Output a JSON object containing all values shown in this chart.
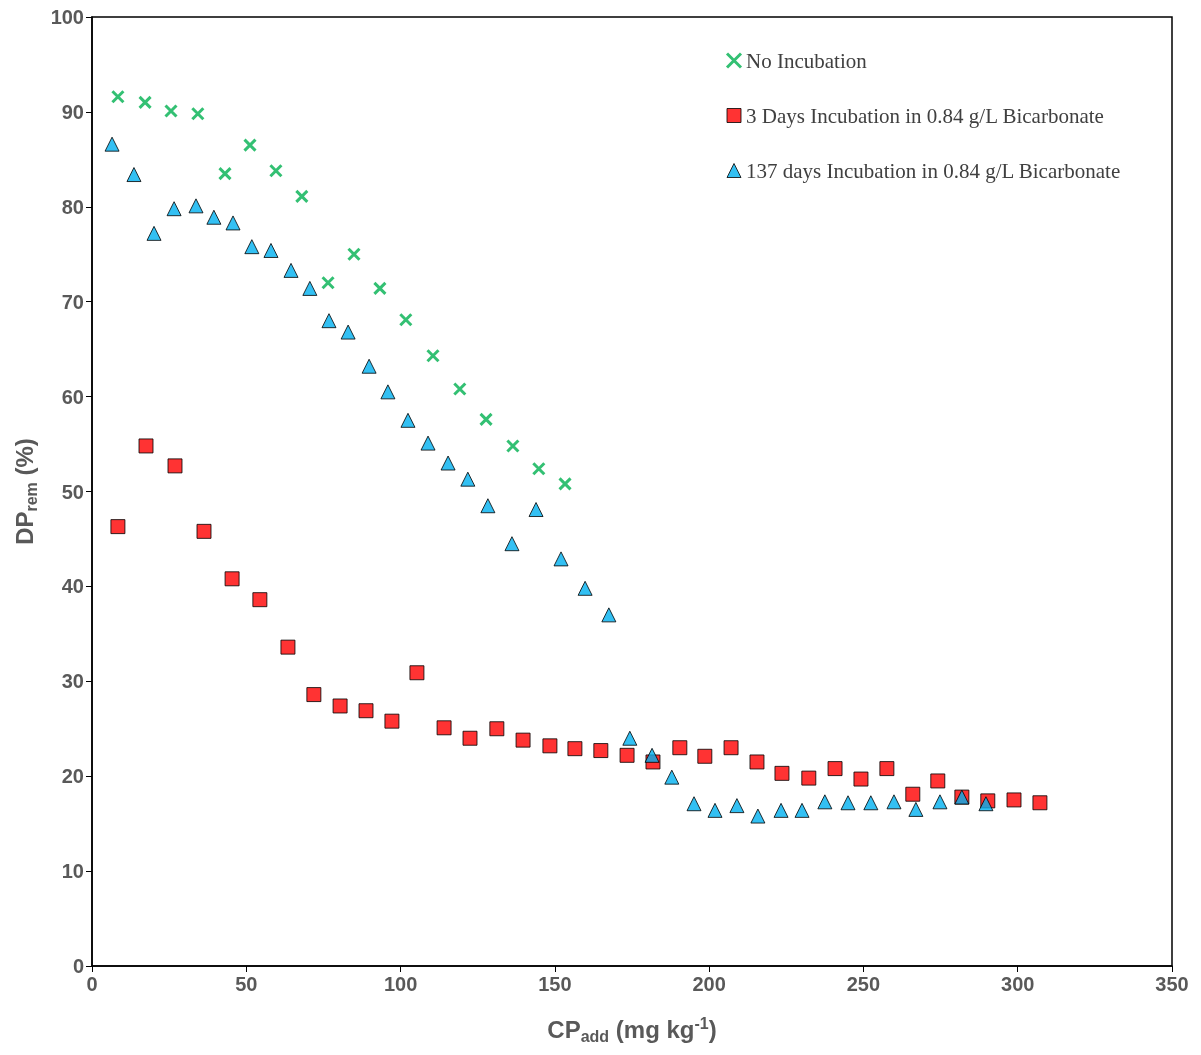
{
  "chart_data": {
    "type": "scatter",
    "xlabel": "CP$_{add}$ (mg kg$^{-1}$)",
    "ylabel": "DP$_{rem}$ (%)",
    "xlim": [
      0,
      350
    ],
    "xticks": [
      0,
      50,
      100,
      150,
      200,
      250,
      300,
      350
    ],
    "ylim": [
      0,
      100
    ],
    "yticks": [
      0,
      10,
      20,
      30,
      40,
      50,
      60,
      70,
      80,
      90,
      100
    ],
    "grid": false,
    "legend": "top right",
    "series": [
      {
        "name": "No Incubation",
        "color": "#00b050",
        "marker": "cross",
        "x": [
          8.4,
          17.2,
          25.6,
          34.3,
          43.1,
          51.2,
          59.6,
          68.0,
          76.5,
          84.9,
          93.3,
          101.7,
          110.5,
          119.2,
          127.7,
          136.4,
          144.8,
          153.3
        ],
        "values": [
          91.6,
          91.0,
          90.1,
          89.8,
          83.5,
          86.5,
          83.8,
          81.1,
          72.0,
          75.0,
          71.4,
          68.1,
          64.3,
          60.8,
          57.6,
          54.8,
          52.4,
          50.8
        ]
      },
      {
        "name": "3 Days Incubation in 0.84 g/L Bicarbonate",
        "color": "#ff0000",
        "marker": "square",
        "x": [
          8.4,
          17.5,
          26.9,
          36.3,
          45.4,
          54.4,
          63.5,
          71.9,
          80.4,
          88.8,
          97.2,
          105.3,
          114.1,
          122.5,
          131.2,
          139.7,
          148.4,
          156.5,
          164.9,
          173.4,
          181.8,
          190.5,
          198.6,
          207.1,
          215.5,
          223.6,
          232.3,
          240.8,
          249.2,
          257.6,
          266.0,
          274.1,
          281.9,
          290.3,
          298.8,
          307.2
        ],
        "values": [
          46.3,
          54.8,
          52.7,
          45.8,
          40.8,
          38.6,
          33.6,
          28.6,
          27.4,
          26.9,
          25.8,
          30.9,
          25.1,
          24.0,
          25.0,
          23.8,
          23.2,
          22.9,
          22.7,
          22.2,
          21.5,
          23.0,
          22.1,
          23.0,
          21.5,
          20.3,
          19.8,
          20.8,
          19.7,
          20.8,
          18.1,
          19.5,
          17.8,
          17.4,
          17.5,
          17.2
        ]
      },
      {
        "name": "137 days Incubation in 0.84 g/L Bicarbonate",
        "color": "#00b0f0",
        "marker": "triangle",
        "x": [
          6.5,
          13.6,
          20.1,
          26.6,
          33.7,
          39.5,
          45.7,
          51.8,
          58.0,
          64.5,
          70.6,
          76.8,
          83.0,
          89.8,
          95.9,
          102.4,
          108.9,
          115.4,
          121.8,
          128.3,
          136.1,
          143.9,
          152.0,
          159.8,
          167.5,
          174.3,
          181.5,
          187.9,
          195.1,
          201.9,
          209.0,
          215.8,
          223.3,
          230.1,
          237.5,
          245.0,
          252.4,
          259.9,
          267.0,
          274.8,
          281.9,
          289.7
        ],
        "values": [
          86.6,
          83.4,
          77.2,
          79.8,
          80.1,
          78.9,
          78.3,
          75.8,
          75.4,
          73.3,
          71.4,
          68.0,
          66.8,
          63.2,
          60.5,
          57.5,
          55.1,
          53.0,
          51.3,
          48.5,
          44.5,
          48.1,
          42.9,
          39.8,
          37.0,
          24.0,
          22.2,
          19.9,
          17.1,
          16.4,
          16.9,
          15.8,
          16.4,
          16.4,
          17.3,
          17.2,
          17.2,
          17.3,
          16.5,
          17.3,
          17.8,
          17.1
        ]
      }
    ]
  }
}
